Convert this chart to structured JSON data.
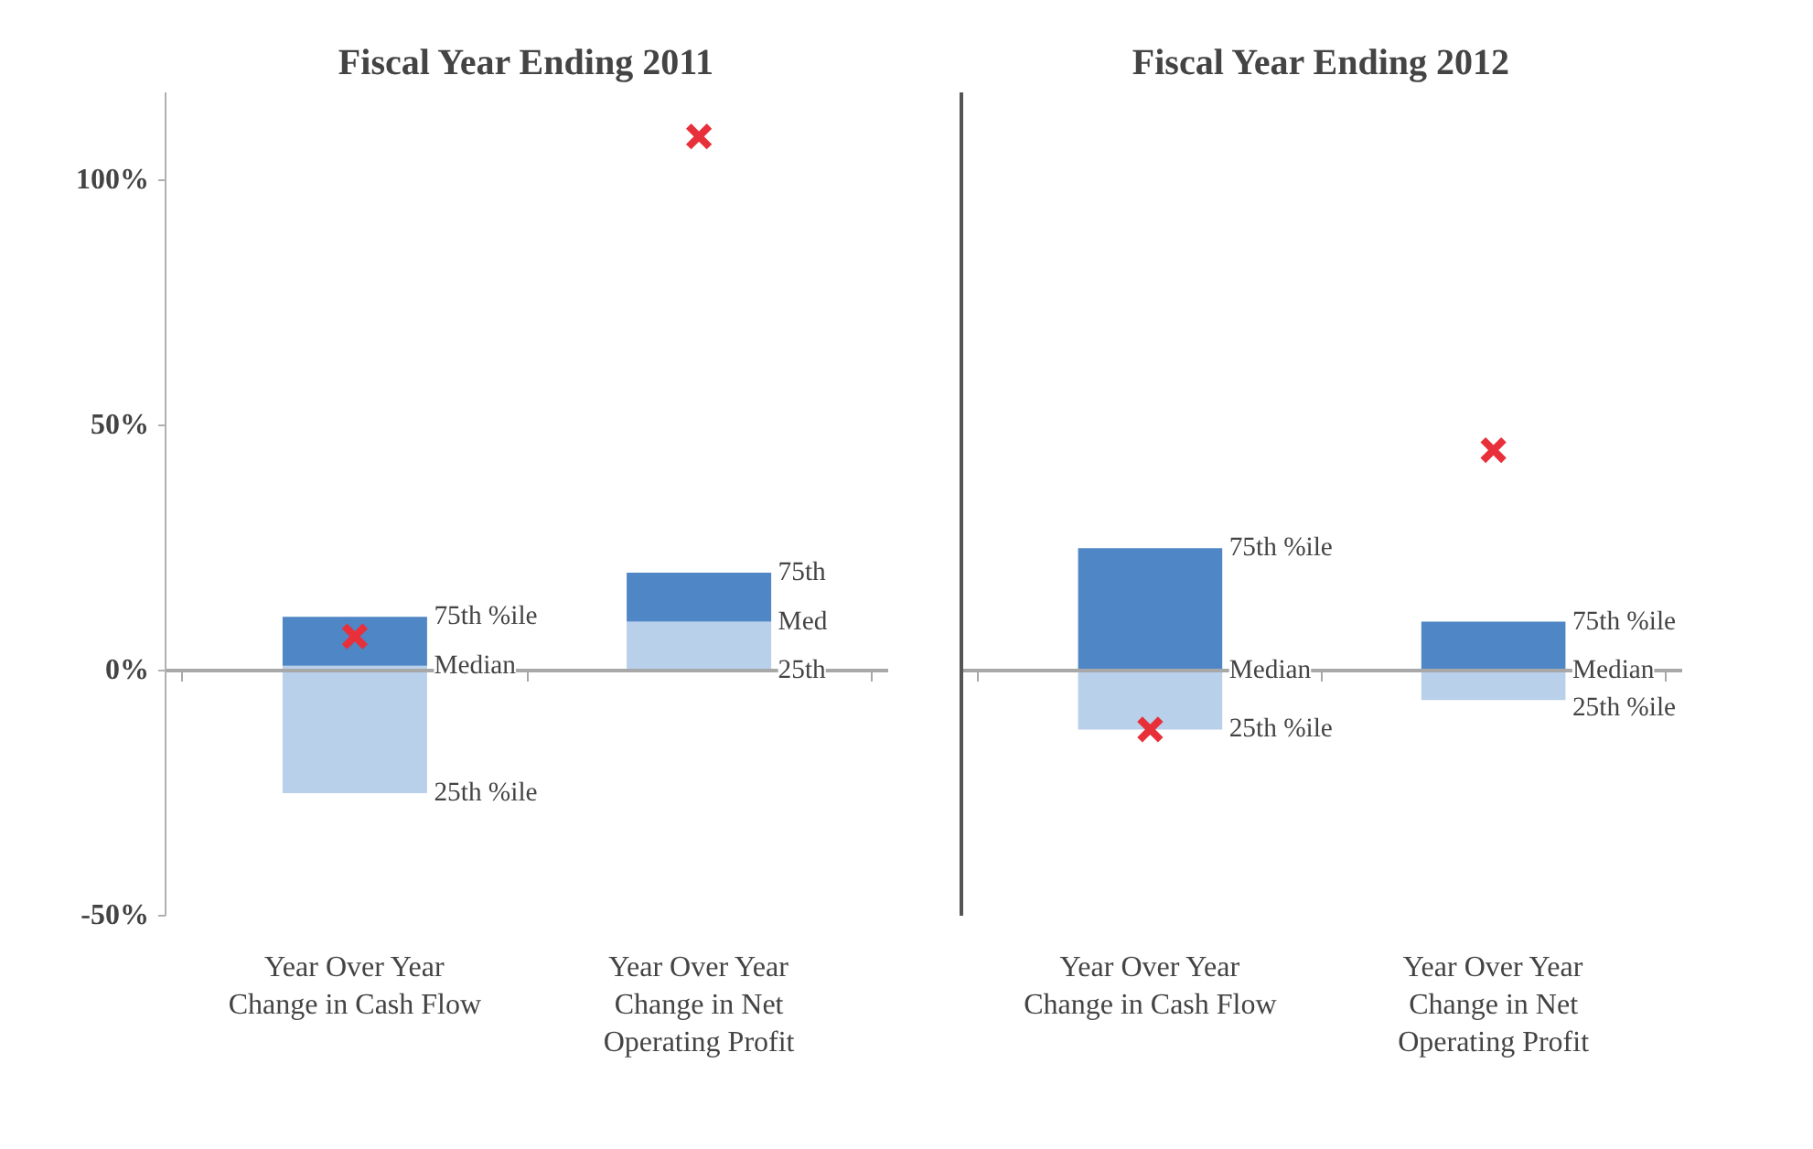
{
  "chart_data": [
    {
      "type": "bar",
      "title": "Fiscal Year Ending 2011",
      "categories": [
        "Year Over Year Change in Cash Flow",
        "Year Over Year Change in Net Operating Profit"
      ],
      "series": [
        {
          "color": "#b8d0ea",
          "base": [
            -25,
            0
          ],
          "values": [
            26,
            10
          ]
        },
        {
          "color": "#4f86c6",
          "base": [
            1,
            10
          ],
          "values": [
            10,
            10
          ]
        },
        {
          "type": "scatter",
          "color": "#e8303a",
          "x": [
            "Year Over Year Change in Cash Flow",
            "Year Over Year Change in Net Operating Profit"
          ],
          "values": [
            7,
            109
          ]
        }
      ],
      "marker": "cross",
      "ylim": [
        -50,
        118
      ],
      "yticks": [
        {
          "value": -50,
          "label": "-50%"
        },
        {
          "value": 0,
          "label": "0%"
        },
        {
          "value": 50,
          "label": "50%"
        },
        {
          "value": 100,
          "label": "100%"
        }
      ],
      "annotations": [
        "75th %ile",
        "Median",
        "25th %ile",
        "75th",
        "Med",
        "25th"
      ]
    },
    {
      "type": "bar",
      "title": "Fiscal Year Ending 2012",
      "tick_labels": "x",
      "categories": [
        "Year Over Year Change in Cash Flow",
        "Year Over Year Change in Net Operating Profit"
      ],
      "series": [
        {
          "color": "#b8d0ea",
          "base": [
            -12,
            -6
          ],
          "values": [
            12,
            6
          ]
        },
        {
          "color": "#4f86c6",
          "base": [
            0,
            0
          ],
          "values": [
            25,
            10
          ]
        },
        {
          "type": "scatter",
          "color": "#e8303a",
          "x": [
            "Year Over Year Change in Cash Flow",
            "Year Over Year Change in Net Operating Profit"
          ],
          "values": [
            -12,
            45
          ]
        }
      ],
      "marker": "cross",
      "ylim": [
        -50,
        118
      ],
      "annotations": [
        "75th %ile",
        "Median",
        "25th %ile",
        "75th %ile",
        "Median",
        "25th %ile"
      ]
    }
  ]
}
